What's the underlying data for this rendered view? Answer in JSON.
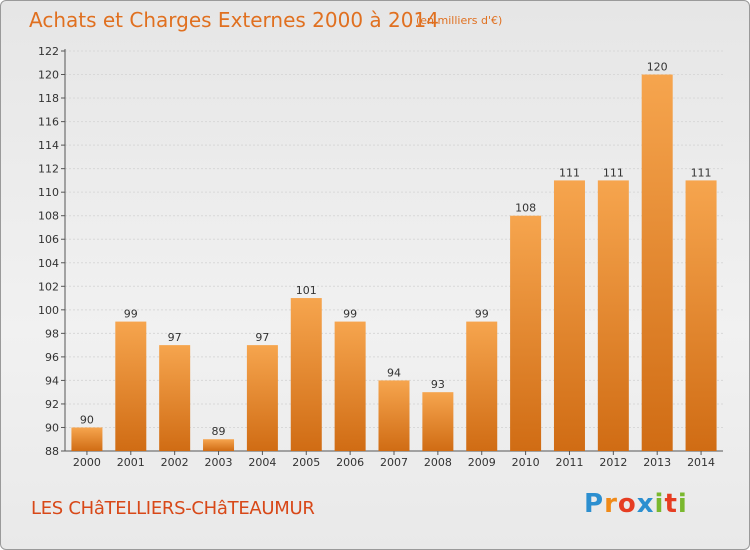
{
  "header": {
    "title": "Achats et Charges Externes 2000 à 2014",
    "subtitle": "(en milliers d'€)"
  },
  "footer": {
    "place": "LES CHâTELLIERS-CHâTEAUMUR",
    "logo": [
      "P",
      "r",
      "o",
      "x",
      "i",
      "t",
      "i"
    ]
  },
  "colors": {
    "bar_light": "#f6a54e",
    "bar_dark": "#d06c14",
    "title": "#e07020",
    "gridline": "#d8d8d8"
  },
  "chart_data": {
    "type": "bar",
    "categories": [
      "2000",
      "2001",
      "2002",
      "2003",
      "2004",
      "2005",
      "2006",
      "2007",
      "2008",
      "2009",
      "2010",
      "2011",
      "2012",
      "2013",
      "2014"
    ],
    "values": [
      90,
      99,
      97,
      89,
      97,
      101,
      99,
      94,
      93,
      99,
      108,
      111,
      111,
      120,
      111
    ],
    "title": "Achats et Charges Externes 2000 à 2014",
    "xlabel": "",
    "ylabel": "",
    "ylim": [
      88,
      122
    ],
    "yticks": [
      88,
      90,
      92,
      94,
      96,
      98,
      100,
      102,
      104,
      106,
      108,
      110,
      112,
      114,
      116,
      118,
      120,
      122
    ],
    "grid": true,
    "legend": "none"
  }
}
